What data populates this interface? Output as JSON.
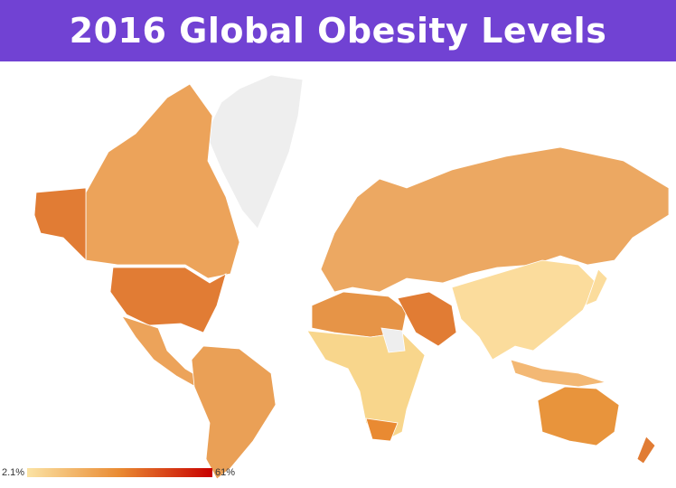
{
  "header": {
    "title": "2016 Global Obesity Levels"
  },
  "legend": {
    "min_label": "2.1%",
    "max_label": "61%",
    "colors": [
      "#fbe3a4",
      "#e98a32",
      "#c80000"
    ]
  }
}
